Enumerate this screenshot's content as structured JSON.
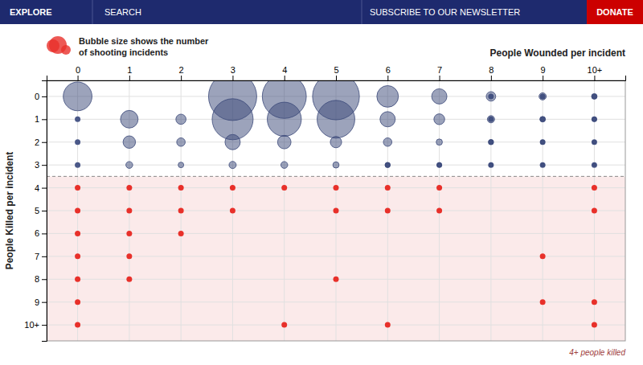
{
  "page": {
    "nav": [
      "EXPLORE",
      "SEARCH",
      "SUBSCRIBE TO OUR NEWSLETTER"
    ],
    "button": "DONATE",
    "nav_color": "#1e2a6e",
    "button_color": "#cc0000"
  },
  "chart_data": {
    "type": "bubble",
    "xlabel": "People Wounded per incident",
    "ylabel": "People Killed per incident",
    "annotations": [
      "Bubble size shows the number",
      "of shooting incidents",
      "4+ people killed"
    ],
    "xlim": [
      -0.6,
      10.6
    ],
    "ylim": [
      10.7,
      -0.7
    ],
    "xticks": [
      0,
      1,
      2,
      3,
      4,
      5,
      6,
      7,
      8,
      9,
      {
        "value": 10,
        "label": "10+"
      }
    ],
    "yticks": [
      0,
      1,
      2,
      3,
      4,
      5,
      6,
      7,
      8,
      9,
      {
        "value": 10,
        "label": "10+"
      }
    ],
    "threshold": 3.5,
    "grid": true,
    "series": [
      {
        "type": "scatter",
        "color": "#4a5888",
        "x": [
          8,
          9,
          10,
          8,
          9,
          10,
          8,
          9,
          10,
          8,
          9,
          10,
          0,
          0,
          0,
          6,
          7
        ],
        "y": [
          0,
          0,
          0,
          1,
          1,
          1,
          2,
          2,
          2,
          3,
          3,
          3,
          1,
          2,
          3,
          3,
          3
        ]
      },
      {
        "type": "bubble",
        "color": "#3a4878",
        "x": [
          0,
          1,
          1,
          1,
          2,
          2,
          2,
          3,
          3,
          3,
          3,
          4,
          4,
          4,
          4,
          5,
          5,
          5,
          5,
          6,
          6,
          6,
          6,
          7,
          7,
          7,
          7,
          8,
          8,
          8,
          8,
          9,
          9,
          9,
          9,
          10,
          10,
          10,
          10
        ],
        "y": [
          0,
          1,
          2,
          3,
          1,
          2,
          3,
          0,
          1,
          2,
          3,
          0,
          1,
          2,
          3,
          0,
          1,
          2,
          3,
          0,
          1,
          2,
          3,
          0,
          1,
          2,
          3,
          0,
          1,
          2,
          3,
          0,
          1,
          2,
          3,
          0,
          1,
          2,
          3
        ],
        "size": [
          3200,
          1200,
          600,
          180,
          400,
          280,
          120,
          9000,
          6500,
          900,
          200,
          7500,
          4500,
          700,
          180,
          8500,
          5500,
          500,
          150,
          1800,
          900,
          280,
          100,
          900,
          450,
          150,
          80,
          350,
          200,
          100,
          60,
          200,
          120,
          70,
          50,
          120,
          80,
          50,
          35
        ]
      },
      {
        "type": "scatter",
        "color": "#e8302a",
        "x": [
          0,
          1,
          2,
          3,
          4,
          5,
          6,
          7,
          10,
          0,
          1,
          2,
          3,
          5,
          6,
          7,
          10,
          0,
          1,
          2,
          0,
          1,
          9,
          0,
          1,
          5,
          0,
          9,
          10,
          0,
          4,
          6,
          10
        ],
        "y": [
          4,
          4,
          4,
          4,
          4,
          4,
          4,
          4,
          4,
          5,
          5,
          5,
          5,
          5,
          5,
          5,
          5,
          6,
          6,
          6,
          7,
          7,
          7,
          8,
          8,
          8,
          9,
          9,
          9,
          10,
          10,
          10,
          10
        ]
      }
    ]
  }
}
